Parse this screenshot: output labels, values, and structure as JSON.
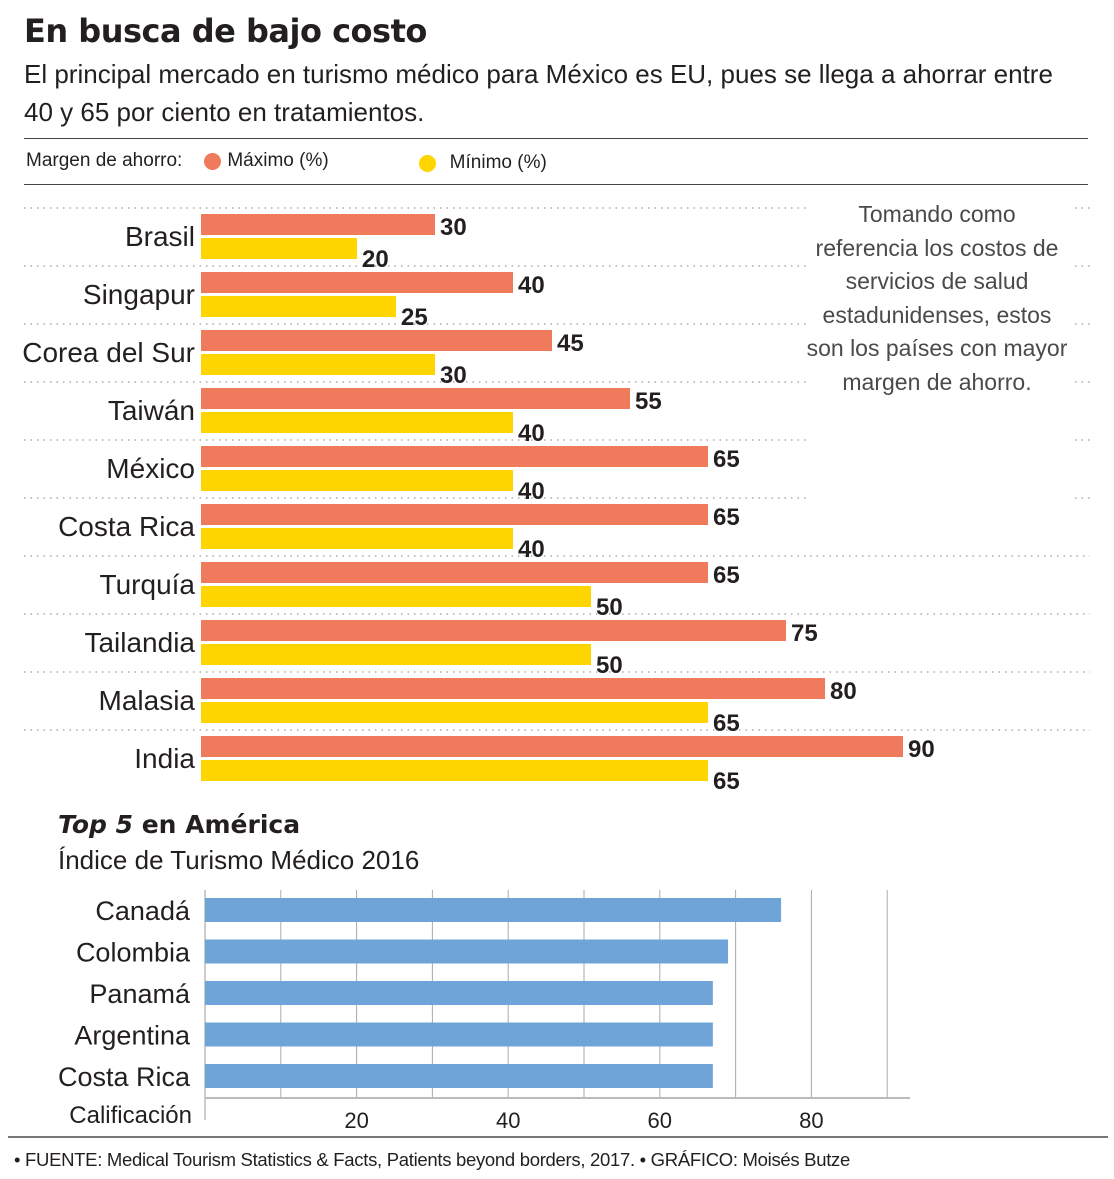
{
  "header": {
    "title": "En busca de bajo costo",
    "subtitle": "El principal mercado en turismo médico para México es EU, pues se llega a ahorrar entre 40 y 65 por ciento en tratamientos."
  },
  "legend": {
    "label": "Margen de ahorro:",
    "items": [
      {
        "name": "Máximo (%)",
        "color": "#f07a5c"
      },
      {
        "name": "Mínimo (%)",
        "color": "#ffd500"
      }
    ]
  },
  "note": "Tomando como referencia los costos de servicios de salud estadunidenses, estos son los países con mayor margen de ahorro.",
  "bottom": {
    "title_italic": "Top 5",
    "title_rest": " en América",
    "subtitle": "Índice de Turismo Médico 2016"
  },
  "footer": "• FUENTE: Medical Tourism Statistics & Facts, Patients beyond borders, 2017. • GRÁFICO: Moisés Butze",
  "chart_data": [
    {
      "type": "bar",
      "orientation": "horizontal",
      "title": "En busca de bajo costo",
      "categories": [
        "Brasil",
        "Singapur",
        "Corea del Sur",
        "Taiwán",
        "México",
        "Costa Rica",
        "Turquía",
        "Tailandia",
        "Malasia",
        "India"
      ],
      "series": [
        {
          "name": "Máximo (%)",
          "color": "#f07a5c",
          "values": [
            30,
            40,
            45,
            55,
            65,
            65,
            65,
            75,
            80,
            90
          ]
        },
        {
          "name": "Mínimo (%)",
          "color": "#ffd500",
          "values": [
            20,
            25,
            30,
            40,
            40,
            40,
            50,
            50,
            65,
            65
          ]
        }
      ],
      "xlabel": "",
      "ylabel": "Margen de ahorro",
      "xlim": [
        0,
        100
      ],
      "grid": false,
      "legend": "top-left",
      "data_labels": true
    },
    {
      "type": "bar",
      "orientation": "horizontal",
      "title": "Top 5 en América — Índice de Turismo Médico 2016",
      "categories": [
        "Canadá",
        "Colombia",
        "Panamá",
        "Argentina",
        "Costa Rica"
      ],
      "values": [
        76,
        69,
        67,
        67,
        67
      ],
      "color": "#6fa4d8",
      "xlabel": "Calificación",
      "xticks": [
        20,
        40,
        60,
        80
      ],
      "xlim": [
        0,
        93
      ],
      "grid": true
    }
  ]
}
